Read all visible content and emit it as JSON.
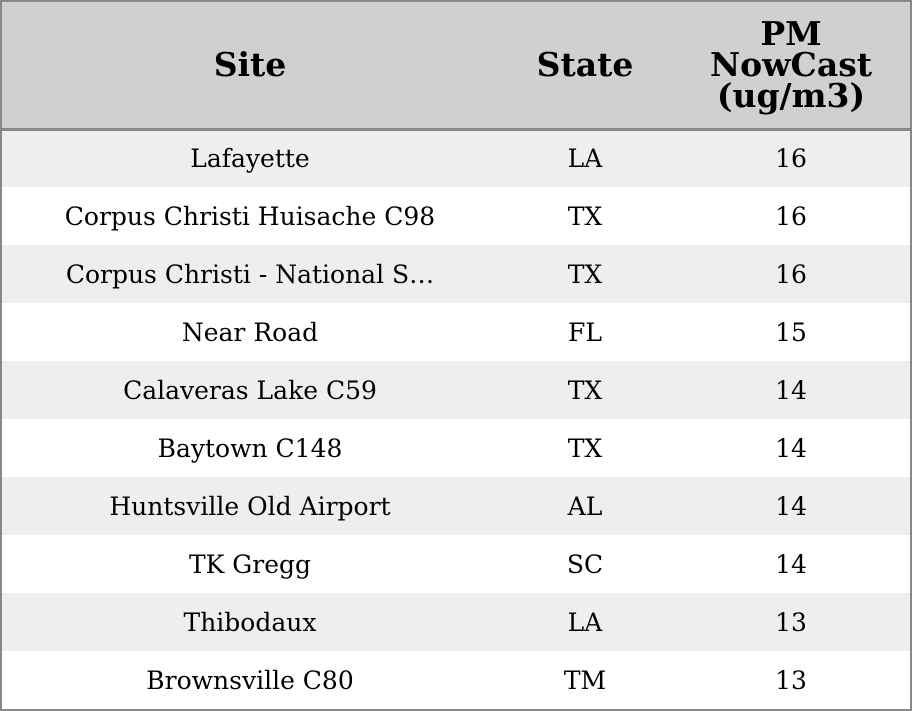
{
  "table": {
    "headers": {
      "site": "Site",
      "state": "State",
      "pm_line1": "PM",
      "pm_line2": "NowCast",
      "pm_line3": "(ug/m3)"
    },
    "rows": [
      {
        "site": "Lafayette",
        "state": "LA",
        "pm": "16"
      },
      {
        "site": "Corpus Christi Huisache C98",
        "state": "TX",
        "pm": "16"
      },
      {
        "site": "Corpus Christi - National S…",
        "state": "TX",
        "pm": "16"
      },
      {
        "site": "Near Road",
        "state": "FL",
        "pm": "15"
      },
      {
        "site": "Calaveras Lake C59",
        "state": "TX",
        "pm": "14"
      },
      {
        "site": "Baytown C148",
        "state": "TX",
        "pm": "14"
      },
      {
        "site": "Huntsville Old Airport",
        "state": "AL",
        "pm": "14"
      },
      {
        "site": "TK Gregg",
        "state": "SC",
        "pm": "14"
      },
      {
        "site": "Thibodaux",
        "state": "LA",
        "pm": "13"
      },
      {
        "site": "Brownsville C80",
        "state": "TM",
        "pm": "13"
      }
    ]
  },
  "colors": {
    "header_background": "#d0d0d0",
    "row_alt_background": "#eeeeee",
    "row_background": "#ffffff",
    "border": "#888888"
  }
}
